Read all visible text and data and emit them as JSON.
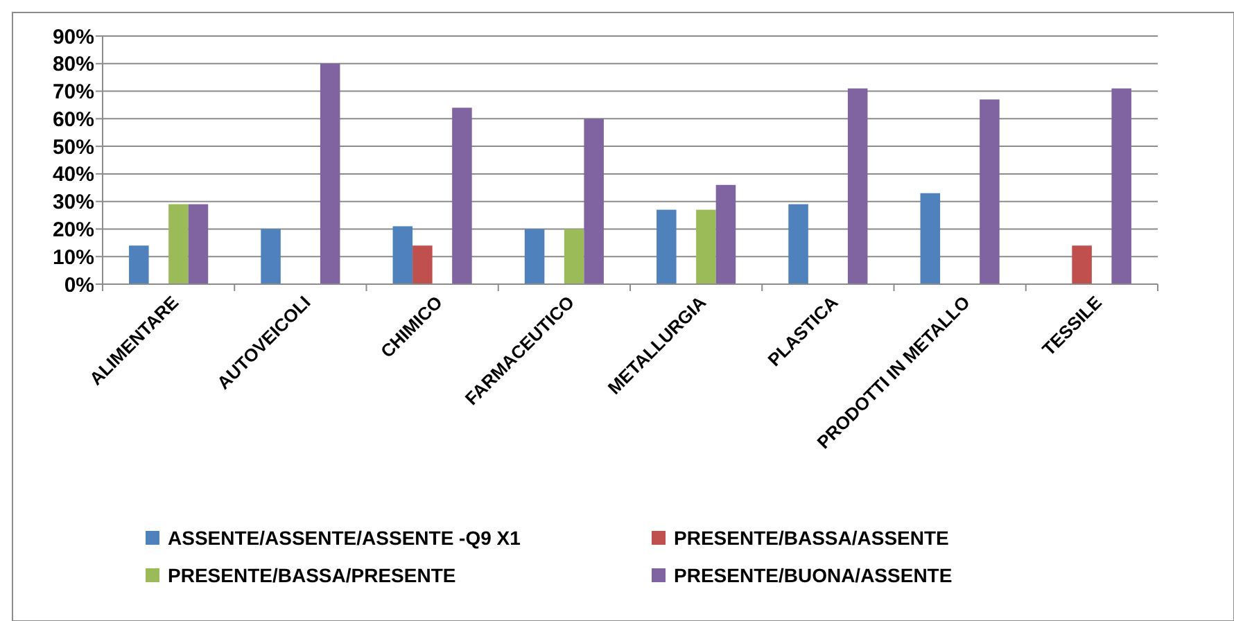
{
  "chart_data": {
    "type": "bar",
    "categories": [
      "ALIMENTARE",
      "AUTOVEICOLI",
      "CHIMICO",
      "FARMACEUTICO",
      "METALLURGIA",
      "PLASTICA",
      "PRODOTTI IN METALLO",
      "TESSILE"
    ],
    "series": [
      {
        "name": "ASSENTE/ASSENTE/ASSENTE -Q9 X1",
        "color": "#4f81bd",
        "values": [
          14,
          20,
          21,
          20,
          27,
          29,
          33,
          null
        ]
      },
      {
        "name": "PRESENTE/BASSA/ASSENTE",
        "color": "#c0504d",
        "values": [
          null,
          null,
          14,
          null,
          null,
          null,
          null,
          14
        ]
      },
      {
        "name": "PRESENTE/BASSA/PRESENTE",
        "color": "#9bbb59",
        "values": [
          29,
          null,
          null,
          20,
          27,
          null,
          null,
          null
        ]
      },
      {
        "name": "PRESENTE/BUONA/ASSENTE",
        "color": "#8064a2",
        "values": [
          29,
          80,
          64,
          60,
          36,
          71,
          67,
          71
        ]
      }
    ],
    "ylim": [
      0,
      90
    ],
    "yticks": [
      {
        "value": 0,
        "label": "0%"
      },
      {
        "value": 10,
        "label": "10%"
      },
      {
        "value": 20,
        "label": "20%"
      },
      {
        "value": 30,
        "label": "30%"
      },
      {
        "value": 40,
        "label": "40%"
      },
      {
        "value": 50,
        "label": "50%"
      },
      {
        "value": 60,
        "label": "60%"
      },
      {
        "value": 70,
        "label": "70%"
      },
      {
        "value": 80,
        "label": "80%"
      },
      {
        "value": 90,
        "label": "90%"
      }
    ],
    "grid": "y",
    "legend": "bottom"
  }
}
